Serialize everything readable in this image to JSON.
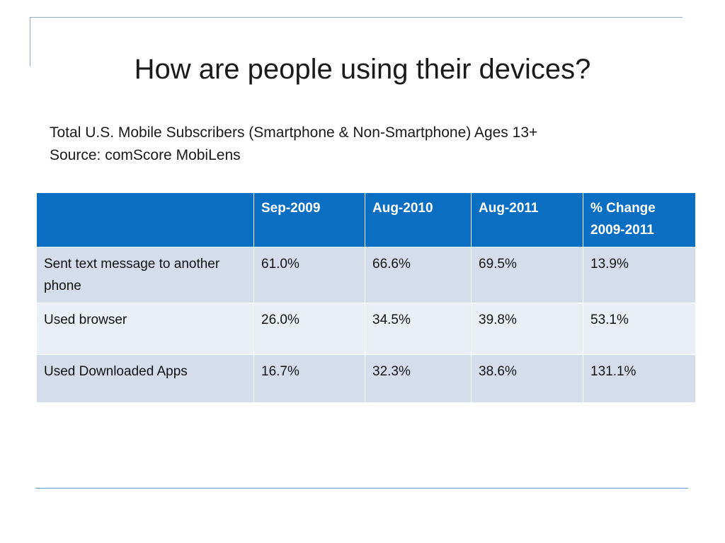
{
  "slide": {
    "title": "How are people using their devices?",
    "subtitle_lines": [
      "Total U.S. Mobile Subscribers (Smartphone & Non-Smartphone) Ages 13+",
      "Source: comScore MobiLens"
    ]
  },
  "table": {
    "headers": [
      "",
      "Sep-2009",
      "Aug-2010",
      "Aug-2011",
      "% Change 2009-2011"
    ],
    "header_line2": [
      "",
      "",
      "",
      "",
      ""
    ],
    "rows": [
      {
        "label": "Sent text message to another phone",
        "values": [
          "61.0%",
          "66.6%",
          "69.5%",
          "13.9%"
        ]
      },
      {
        "label": "Used browser",
        "values": [
          "26.0%",
          "34.5%",
          "39.8%",
          "53.1%"
        ]
      },
      {
        "label": "Used Downloaded Apps",
        "values": [
          "16.7%",
          "32.3%",
          "38.6%",
          "131.1%"
        ]
      }
    ]
  },
  "colors": {
    "header_bg": "#0a6fc2",
    "row_odd": "#d4ddec",
    "row_even": "#eaeff7",
    "frame_line": "#8fa9c7"
  }
}
